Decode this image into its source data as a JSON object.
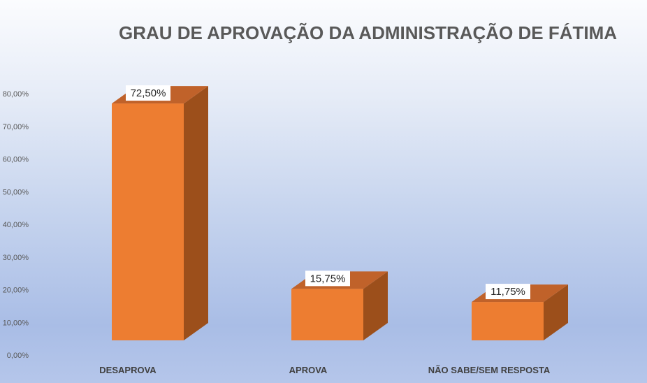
{
  "chart_data": {
    "type": "bar",
    "title": "GRAU DE APROVAÇÃO DA ADMINISTRAÇÃO DE FÁTIMA",
    "categories": [
      "DESAPROVA",
      "APROVA",
      "NÃO SABE/SEM RESPOSTA"
    ],
    "values": [
      72.5,
      15.75,
      11.75
    ],
    "data_labels": [
      "72,50%",
      "15,75%",
      "11,75%"
    ],
    "ylim": [
      0,
      80
    ],
    "yticks": [
      "0,00%",
      "10,00%",
      "20,00%",
      "30,00%",
      "40,00%",
      "50,00%",
      "60,00%",
      "70,00%",
      "80,00%"
    ],
    "grid": false,
    "bar_style": "3d",
    "colors": {
      "front": "#ed7d31",
      "side": "#9c4f1b",
      "top": "#c0622a"
    }
  }
}
